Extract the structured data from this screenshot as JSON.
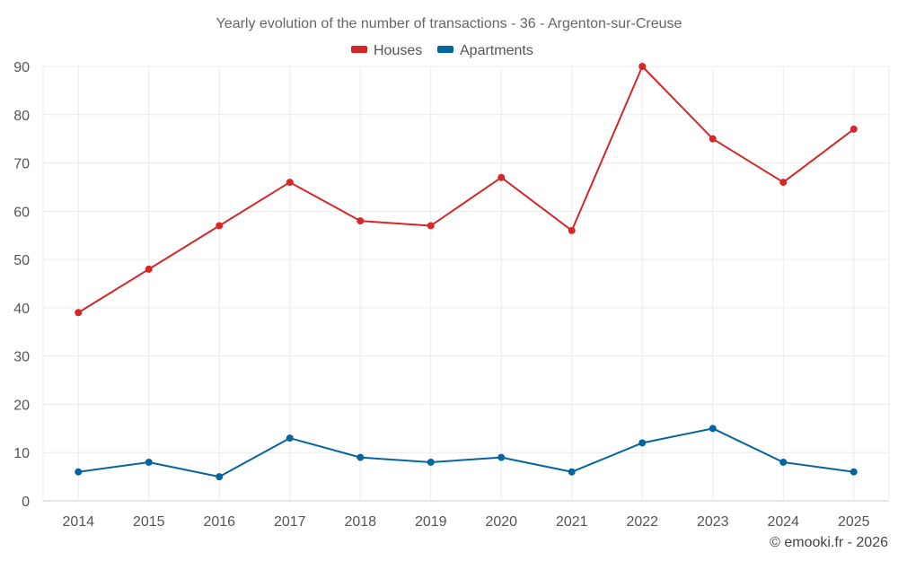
{
  "chart_data": {
    "type": "line",
    "title": "Yearly evolution of the number of transactions - 36 - Argenton-sur-Creuse",
    "categories": [
      "2014",
      "2015",
      "2016",
      "2017",
      "2018",
      "2019",
      "2020",
      "2021",
      "2022",
      "2023",
      "2024",
      "2025"
    ],
    "series": [
      {
        "name": "Houses",
        "color": "#d62728",
        "values": [
          39,
          48,
          57,
          66,
          58,
          57,
          67,
          56,
          90,
          75,
          66,
          77
        ]
      },
      {
        "name": "Apartments",
        "color": "#06649e",
        "values": [
          6,
          8,
          5,
          13,
          9,
          8,
          9,
          6,
          12,
          15,
          8,
          6
        ]
      }
    ],
    "xlabel": "",
    "ylabel": "",
    "ylim": [
      0,
      90
    ],
    "yticks": [
      0,
      10,
      20,
      30,
      40,
      50,
      60,
      70,
      80,
      90
    ],
    "grid": true,
    "legend": "top-center"
  },
  "credit": "© emooki.fr - 2026"
}
